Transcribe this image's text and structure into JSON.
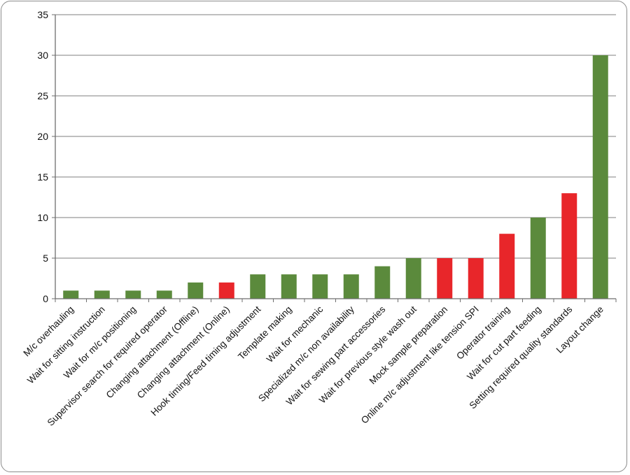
{
  "chart_data": {
    "type": "bar",
    "title": "",
    "xlabel": "",
    "ylabel": "",
    "ylim": [
      0,
      35
    ],
    "yticks": [
      0,
      5,
      10,
      15,
      20,
      25,
      30,
      35
    ],
    "grid": true,
    "legend": "none",
    "categories": [
      "M/c overhauling",
      "Wait for sitting instruction",
      "Wait for m/c positioning",
      "Supervisor search for required operator",
      "Changing attachment (Offline)",
      "Changing attachment (Online)",
      "Hook timing/Feed timing adjustment",
      "Template making",
      "Wait for mechanic",
      "Specialized m/c non availability",
      "Wait for sewing part accessories",
      "Wait for previous style wash out",
      "Mock sample preparation",
      "Online m/c adjustment like tension SPI",
      "Operator training",
      "Wait for  cut part feeding",
      "Setting required quality standards",
      "Layout change"
    ],
    "values": [
      1,
      1,
      1,
      1,
      2,
      2,
      3,
      3,
      3,
      3,
      4,
      5,
      5,
      5,
      8,
      10,
      13,
      30
    ],
    "bar_colors": [
      "#5b8a3c",
      "#5b8a3c",
      "#5b8a3c",
      "#5b8a3c",
      "#5b8a3c",
      "#e8262a",
      "#5b8a3c",
      "#5b8a3c",
      "#5b8a3c",
      "#5b8a3c",
      "#5b8a3c",
      "#5b8a3c",
      "#e8262a",
      "#e8262a",
      "#e8262a",
      "#5b8a3c",
      "#e8262a",
      "#5b8a3c"
    ],
    "colors": {
      "green": "#5b8a3c",
      "red": "#e8262a",
      "grid": "#7f7f7f",
      "axis": "#6e6e6e"
    }
  }
}
